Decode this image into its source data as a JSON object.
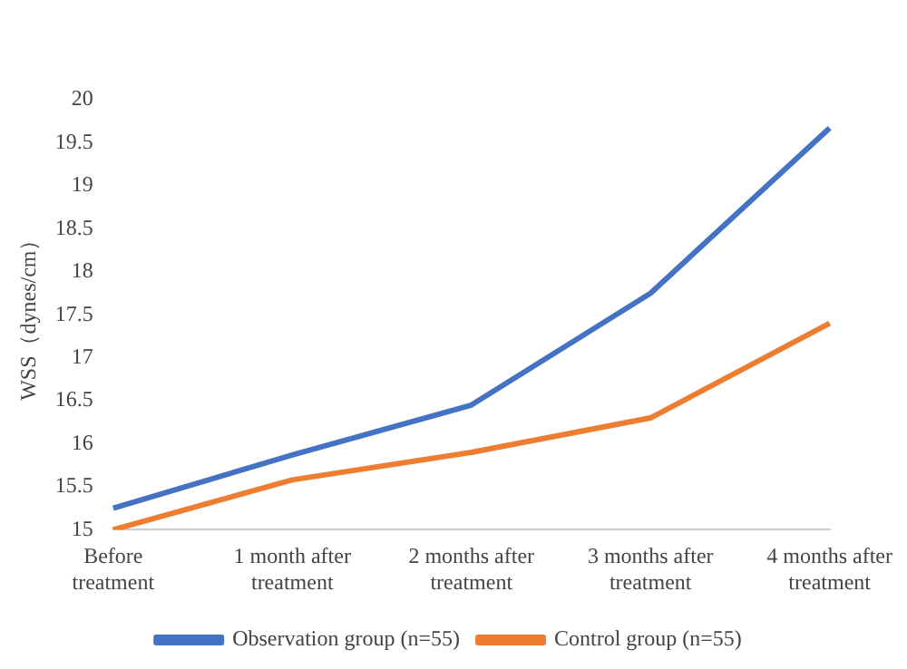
{
  "chart_data": {
    "type": "line",
    "ylabel": "WSS（dynes/cm）",
    "categories": [
      "Before treatment",
      "1 month after treatment",
      "2 months after treatment",
      "3 months after treatment",
      "4 months after treatment"
    ],
    "series": [
      {
        "name": "Observation group (n=55)",
        "color": "#4472c4",
        "values": [
          15.25,
          15.87,
          16.45,
          17.75,
          19.67
        ]
      },
      {
        "name": "Control group (n=55)",
        "color": "#ed7d31",
        "values": [
          15.0,
          15.58,
          15.9,
          16.3,
          17.4
        ]
      }
    ],
    "ylim": [
      15,
      20
    ],
    "yticks": [
      15,
      15.5,
      16,
      16.5,
      17,
      17.5,
      18,
      18.5,
      19,
      19.5,
      20
    ],
    "grid": false,
    "legend": "bottom"
  }
}
